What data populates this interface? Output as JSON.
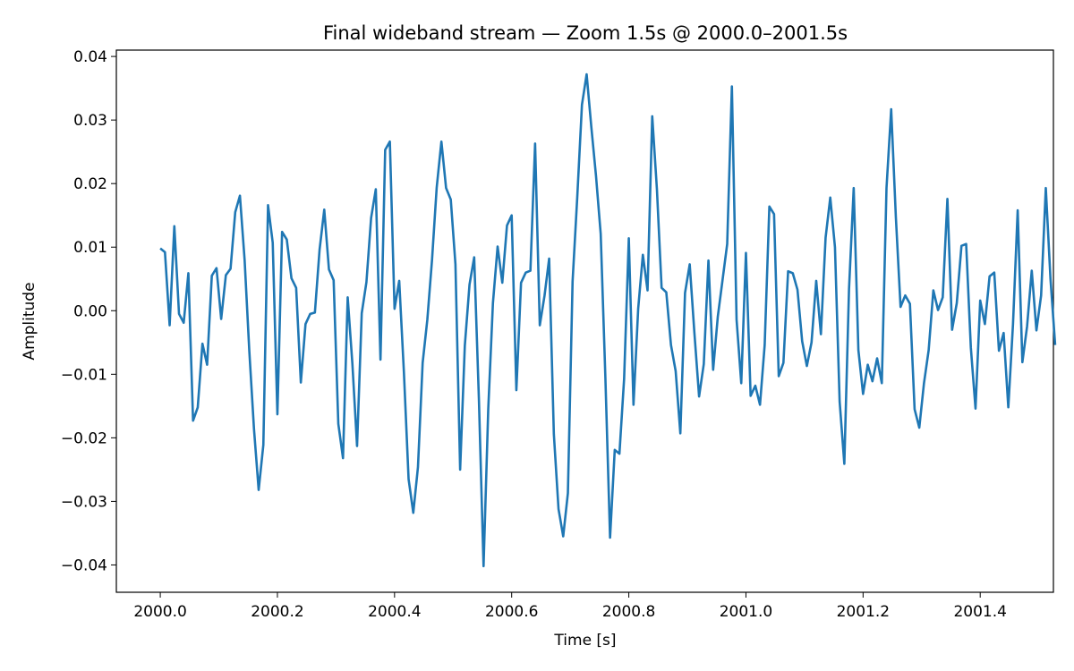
{
  "chart_data": {
    "type": "line",
    "title": "Final wideband stream — Zoom 1.5s @ 2000.0–2001.5s",
    "xlabel": "Time [s]",
    "ylabel": "Amplitude",
    "xlim": [
      1999.925,
      2001.525
    ],
    "ylim": [
      -0.0443,
      0.041
    ],
    "xticks": [
      2000.0,
      2000.2,
      2000.4,
      2000.6,
      2000.8,
      2001.0,
      2001.2,
      2001.4
    ],
    "xtick_labels": [
      "2000.0",
      "2000.2",
      "2000.4",
      "2000.6",
      "2000.8",
      "2001.0",
      "2001.2",
      "2001.4"
    ],
    "yticks": [
      -0.04,
      -0.03,
      -0.02,
      -0.01,
      0.0,
      0.01,
      0.02,
      0.03,
      0.04
    ],
    "ytick_labels": [
      "−0.04",
      "−0.03",
      "−0.02",
      "−0.01",
      "0.00",
      "0.01",
      "0.02",
      "0.03",
      "0.04"
    ],
    "grid": false,
    "color": "#1f77b4",
    "series": [
      {
        "x_start": 2000.0,
        "x_step": 0.008,
        "values": [
          0.0098,
          0.0092,
          -0.0023,
          0.0133,
          -0.0005,
          -0.0019,
          0.0059,
          -0.0173,
          -0.0152,
          -0.0052,
          -0.0085,
          0.0055,
          0.0067,
          -0.0013,
          0.0056,
          0.0066,
          0.0155,
          0.0181,
          0.008,
          -0.0063,
          -0.0186,
          -0.0282,
          -0.0211,
          0.0166,
          0.0107,
          -0.0163,
          0.0124,
          0.0112,
          0.0051,
          0.0036,
          -0.0113,
          -0.0021,
          -0.0005,
          -0.0003,
          0.0096,
          0.0159,
          0.0065,
          0.0048,
          -0.0178,
          -0.0232,
          0.0021,
          -0.0083,
          -0.0213,
          -0.0004,
          0.0045,
          0.0146,
          0.0191,
          -0.0077,
          0.0253,
          0.0266,
          0.0003,
          0.0047,
          -0.0097,
          -0.0265,
          -0.0318,
          -0.0246,
          -0.0082,
          -0.0014,
          0.008,
          0.0194,
          0.0266,
          0.0193,
          0.0175,
          0.0073,
          -0.025,
          -0.0055,
          0.0041,
          0.0084,
          -0.0138,
          -0.0402,
          -0.0155,
          0.0012,
          0.0101,
          0.0044,
          0.0134,
          0.015,
          -0.0125,
          0.0044,
          0.006,
          0.0063,
          0.0263,
          -0.0023,
          0.0023,
          0.0082,
          -0.0194,
          -0.0312,
          -0.0355,
          -0.0287,
          0.0046,
          0.0179,
          0.0324,
          0.0372,
          0.0289,
          0.0212,
          0.0121,
          -0.0105,
          -0.0357,
          -0.0219,
          -0.0225,
          -0.0107,
          0.0114,
          -0.0148,
          0.0003,
          0.0088,
          0.0032,
          0.0306,
          0.0191,
          0.0036,
          0.0029,
          -0.0054,
          -0.0095,
          -0.0193,
          0.0028,
          0.0073,
          -0.0035,
          -0.0135,
          -0.0084,
          0.0079,
          -0.0093,
          -0.0009,
          0.0048,
          0.0105,
          0.0353,
          -0.0014,
          -0.0114,
          0.0091,
          -0.0134,
          -0.0118,
          -0.0148,
          -0.0054,
          0.0164,
          0.0152,
          -0.0103,
          -0.0082,
          0.0062,
          0.0059,
          0.0033,
          -0.0048,
          -0.0087,
          -0.005,
          0.0047,
          -0.0037,
          0.0115,
          0.0178,
          0.01,
          -0.0143,
          -0.0241,
          0.0034,
          0.0193,
          -0.0062,
          -0.0131,
          -0.0085,
          -0.0111,
          -0.0075,
          -0.0114,
          0.0193,
          0.0317,
          0.0147,
          0.0006,
          0.0024,
          0.0011,
          -0.0155,
          -0.0184,
          -0.0114,
          -0.0062,
          0.0032,
          0.0001,
          0.0021,
          0.0176,
          -0.003,
          0.0012,
          0.0102,
          0.0105,
          -0.0058,
          -0.0154,
          0.0016,
          -0.0021,
          0.0054,
          0.006,
          -0.0063,
          -0.0035,
          -0.0152,
          -0.0021,
          0.0158,
          -0.0081,
          -0.0025,
          0.0063,
          -0.0031,
          0.0024,
          0.0193,
          0.005,
          -0.0054
        ]
      }
    ]
  }
}
